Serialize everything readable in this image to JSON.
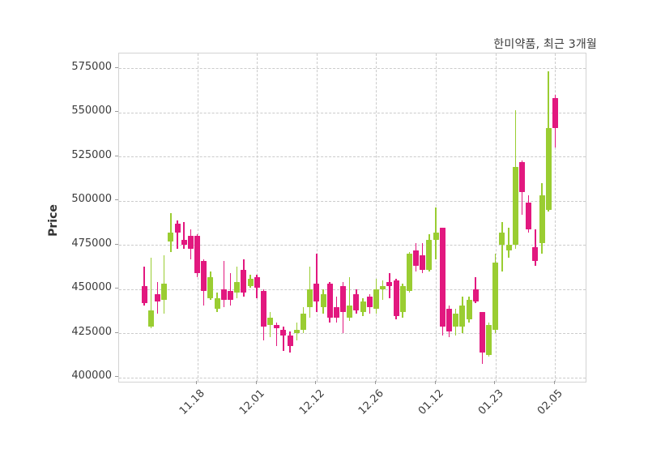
{
  "header": {
    "title": "한미약품, 최근 3개월"
  },
  "axes": {
    "y_label": "Price",
    "y_tick_labels": [
      "400000",
      "425000",
      "450000",
      "475000",
      "500000",
      "525000",
      "550000",
      "575000"
    ],
    "x_tick_labels": [
      "11.18",
      "12.01",
      "12.12",
      "12.26",
      "01.12",
      "01.23",
      "02.05"
    ]
  },
  "chart_data": {
    "type": "candlestick",
    "title": "한미약품, 최근 3개월",
    "ylabel": "Price",
    "yticks": [
      400000,
      425000,
      450000,
      475000,
      500000,
      525000,
      550000,
      575000
    ],
    "ylim": [
      397700,
      583300
    ],
    "xlim_index": [
      -3.8,
      66.6
    ],
    "grid": "dashed",
    "legend": "none",
    "xticks": [
      {
        "i": 8,
        "label": "11.18"
      },
      {
        "i": 17,
        "label": "12.01"
      },
      {
        "i": 26,
        "label": "12.12"
      },
      {
        "i": 35,
        "label": "12.26"
      },
      {
        "i": 44,
        "label": "01.12"
      },
      {
        "i": 53,
        "label": "01.23"
      },
      {
        "i": 62,
        "label": "02.05"
      }
    ],
    "colors": {
      "up": "#9ACD32",
      "down": "#E2187F",
      "grid": "#cbcbcb",
      "spine": "#d3d3d3",
      "text": "#3b3b3b"
    },
    "ohlc_columns": [
      "open",
      "high",
      "low",
      "close"
    ],
    "ohlc": [
      [
        452000,
        463000,
        441000,
        442000
      ],
      [
        429000,
        468000,
        428000,
        438000
      ],
      [
        447000,
        454000,
        436000,
        443000
      ],
      [
        444000,
        469000,
        436000,
        453000
      ],
      [
        477000,
        493000,
        471000,
        482000
      ],
      [
        487000,
        489000,
        473000,
        482000
      ],
      [
        478000,
        488000,
        473000,
        475000
      ],
      [
        480000,
        484000,
        467000,
        473000
      ],
      [
        480000,
        481000,
        457000,
        459000
      ],
      [
        466000,
        467000,
        441000,
        449000
      ],
      [
        445000,
        460000,
        444000,
        457000
      ],
      [
        439000,
        448000,
        437000,
        445000
      ],
      [
        450000,
        466000,
        440000,
        444000
      ],
      [
        449000,
        459000,
        441000,
        444000
      ],
      [
        448000,
        463000,
        445000,
        454000
      ],
      [
        461000,
        467000,
        446000,
        448000
      ],
      [
        452000,
        458000,
        451000,
        456000
      ],
      [
        457000,
        458000,
        445000,
        451000
      ],
      [
        449000,
        450000,
        421000,
        429000
      ],
      [
        430000,
        437000,
        423000,
        434000
      ],
      [
        430000,
        431000,
        418000,
        428000
      ],
      [
        427000,
        429000,
        415000,
        424000
      ],
      [
        424000,
        426000,
        414000,
        418000
      ],
      [
        425000,
        431000,
        421000,
        427000
      ],
      [
        427000,
        440000,
        425000,
        436000
      ],
      [
        440000,
        463000,
        434000,
        450000
      ],
      [
        453000,
        470000,
        437000,
        443000
      ],
      [
        440000,
        450000,
        436000,
        447000
      ],
      [
        453000,
        454000,
        431000,
        434000
      ],
      [
        440000,
        446000,
        431000,
        434000
      ],
      [
        452000,
        454000,
        425000,
        437000
      ],
      [
        434000,
        457000,
        432000,
        441000
      ],
      [
        447000,
        450000,
        436000,
        438000
      ],
      [
        437000,
        445000,
        435000,
        443000
      ],
      [
        446000,
        447000,
        436000,
        440000
      ],
      [
        439000,
        456000,
        436000,
        450000
      ],
      [
        450000,
        455000,
        444000,
        452000
      ],
      [
        454000,
        459000,
        445000,
        452000
      ],
      [
        455000,
        456000,
        433000,
        435000
      ],
      [
        437000,
        453000,
        434000,
        452000
      ],
      [
        449000,
        471000,
        448000,
        470000
      ],
      [
        472000,
        476000,
        460000,
        463000
      ],
      [
        469000,
        476000,
        459000,
        461000
      ],
      [
        461000,
        481000,
        460000,
        478000
      ],
      [
        478000,
        496000,
        467000,
        482000
      ],
      [
        485000,
        485000,
        424000,
        429000
      ],
      [
        439000,
        441000,
        423000,
        426000
      ],
      [
        429000,
        439000,
        424000,
        436000
      ],
      [
        429000,
        446000,
        425000,
        441000
      ],
      [
        433000,
        446000,
        431000,
        444000
      ],
      [
        450000,
        457000,
        442000,
        443000
      ],
      [
        437000,
        437000,
        408000,
        414000
      ],
      [
        413000,
        431000,
        412000,
        430000
      ],
      [
        427000,
        470000,
        425000,
        465000
      ],
      [
        475000,
        488000,
        460000,
        482000
      ],
      [
        472000,
        485000,
        468000,
        475000
      ],
      [
        475000,
        551000,
        473000,
        519000
      ],
      [
        522000,
        523000,
        492000,
        505000
      ],
      [
        499000,
        503000,
        482000,
        484000
      ],
      [
        474000,
        484000,
        463000,
        466000
      ],
      [
        476000,
        510000,
        470000,
        503000
      ],
      [
        495000,
        573000,
        494000,
        541000
      ],
      [
        558000,
        560000,
        530000,
        541000
      ]
    ]
  }
}
